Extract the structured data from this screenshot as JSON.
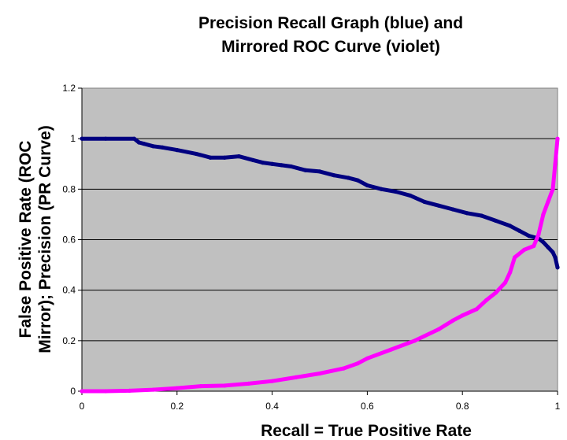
{
  "chart_data": {
    "type": "line",
    "title_line1": "Precision Recall Graph (blue) and",
    "title_line2": "Mirrored ROC Curve (violet)",
    "xlabel": "Recall = True Positive Rate",
    "ylabel_line1": "False Positive Rate (ROC",
    "ylabel_line2": "Mirror); Precision (PR Curve)",
    "xlim": [
      0,
      1
    ],
    "ylim": [
      0,
      1.2
    ],
    "x_ticks": [
      "0",
      "0.2",
      "0.4",
      "0.6",
      "0.8",
      "1"
    ],
    "y_ticks": [
      "0",
      "0.2",
      "0.4",
      "0.6",
      "0.8",
      "1",
      "1.2"
    ],
    "grid": "horizontal",
    "plot_background": "#c0c0c0",
    "gridline_color": "#000000",
    "series": [
      {
        "color": "#000080",
        "x": [
          0,
          0.05,
          0.11,
          0.12,
          0.13,
          0.15,
          0.17,
          0.2,
          0.24,
          0.27,
          0.3,
          0.33,
          0.36,
          0.38,
          0.4,
          0.42,
          0.44,
          0.47,
          0.5,
          0.53,
          0.56,
          0.58,
          0.6,
          0.63,
          0.66,
          0.69,
          0.72,
          0.75,
          0.78,
          0.81,
          0.84,
          0.87,
          0.9,
          0.92,
          0.94,
          0.96,
          0.97,
          0.98,
          0.99,
          0.995,
          1.0
        ],
        "y": [
          1.0,
          1.0,
          1.0,
          0.985,
          0.98,
          0.97,
          0.965,
          0.955,
          0.94,
          0.925,
          0.925,
          0.93,
          0.915,
          0.905,
          0.9,
          0.895,
          0.89,
          0.875,
          0.87,
          0.855,
          0.845,
          0.835,
          0.815,
          0.8,
          0.79,
          0.775,
          0.75,
          0.735,
          0.72,
          0.705,
          0.695,
          0.675,
          0.655,
          0.635,
          0.615,
          0.605,
          0.59,
          0.57,
          0.55,
          0.53,
          0.49
        ]
      },
      {
        "color": "#ff00ff",
        "x": [
          0,
          0.05,
          0.1,
          0.15,
          0.2,
          0.25,
          0.3,
          0.35,
          0.4,
          0.45,
          0.5,
          0.55,
          0.58,
          0.6,
          0.65,
          0.7,
          0.75,
          0.78,
          0.8,
          0.83,
          0.85,
          0.87,
          0.89,
          0.9,
          0.91,
          0.93,
          0.95,
          0.96,
          0.97,
          0.98,
          0.99,
          0.995,
          1.0
        ],
        "y": [
          0,
          0,
          0.002,
          0.006,
          0.012,
          0.02,
          0.022,
          0.03,
          0.04,
          0.055,
          0.07,
          0.09,
          0.11,
          0.13,
          0.165,
          0.2,
          0.245,
          0.28,
          0.3,
          0.325,
          0.36,
          0.39,
          0.43,
          0.47,
          0.53,
          0.56,
          0.575,
          0.62,
          0.7,
          0.75,
          0.8,
          0.9,
          1.0
        ]
      }
    ]
  }
}
